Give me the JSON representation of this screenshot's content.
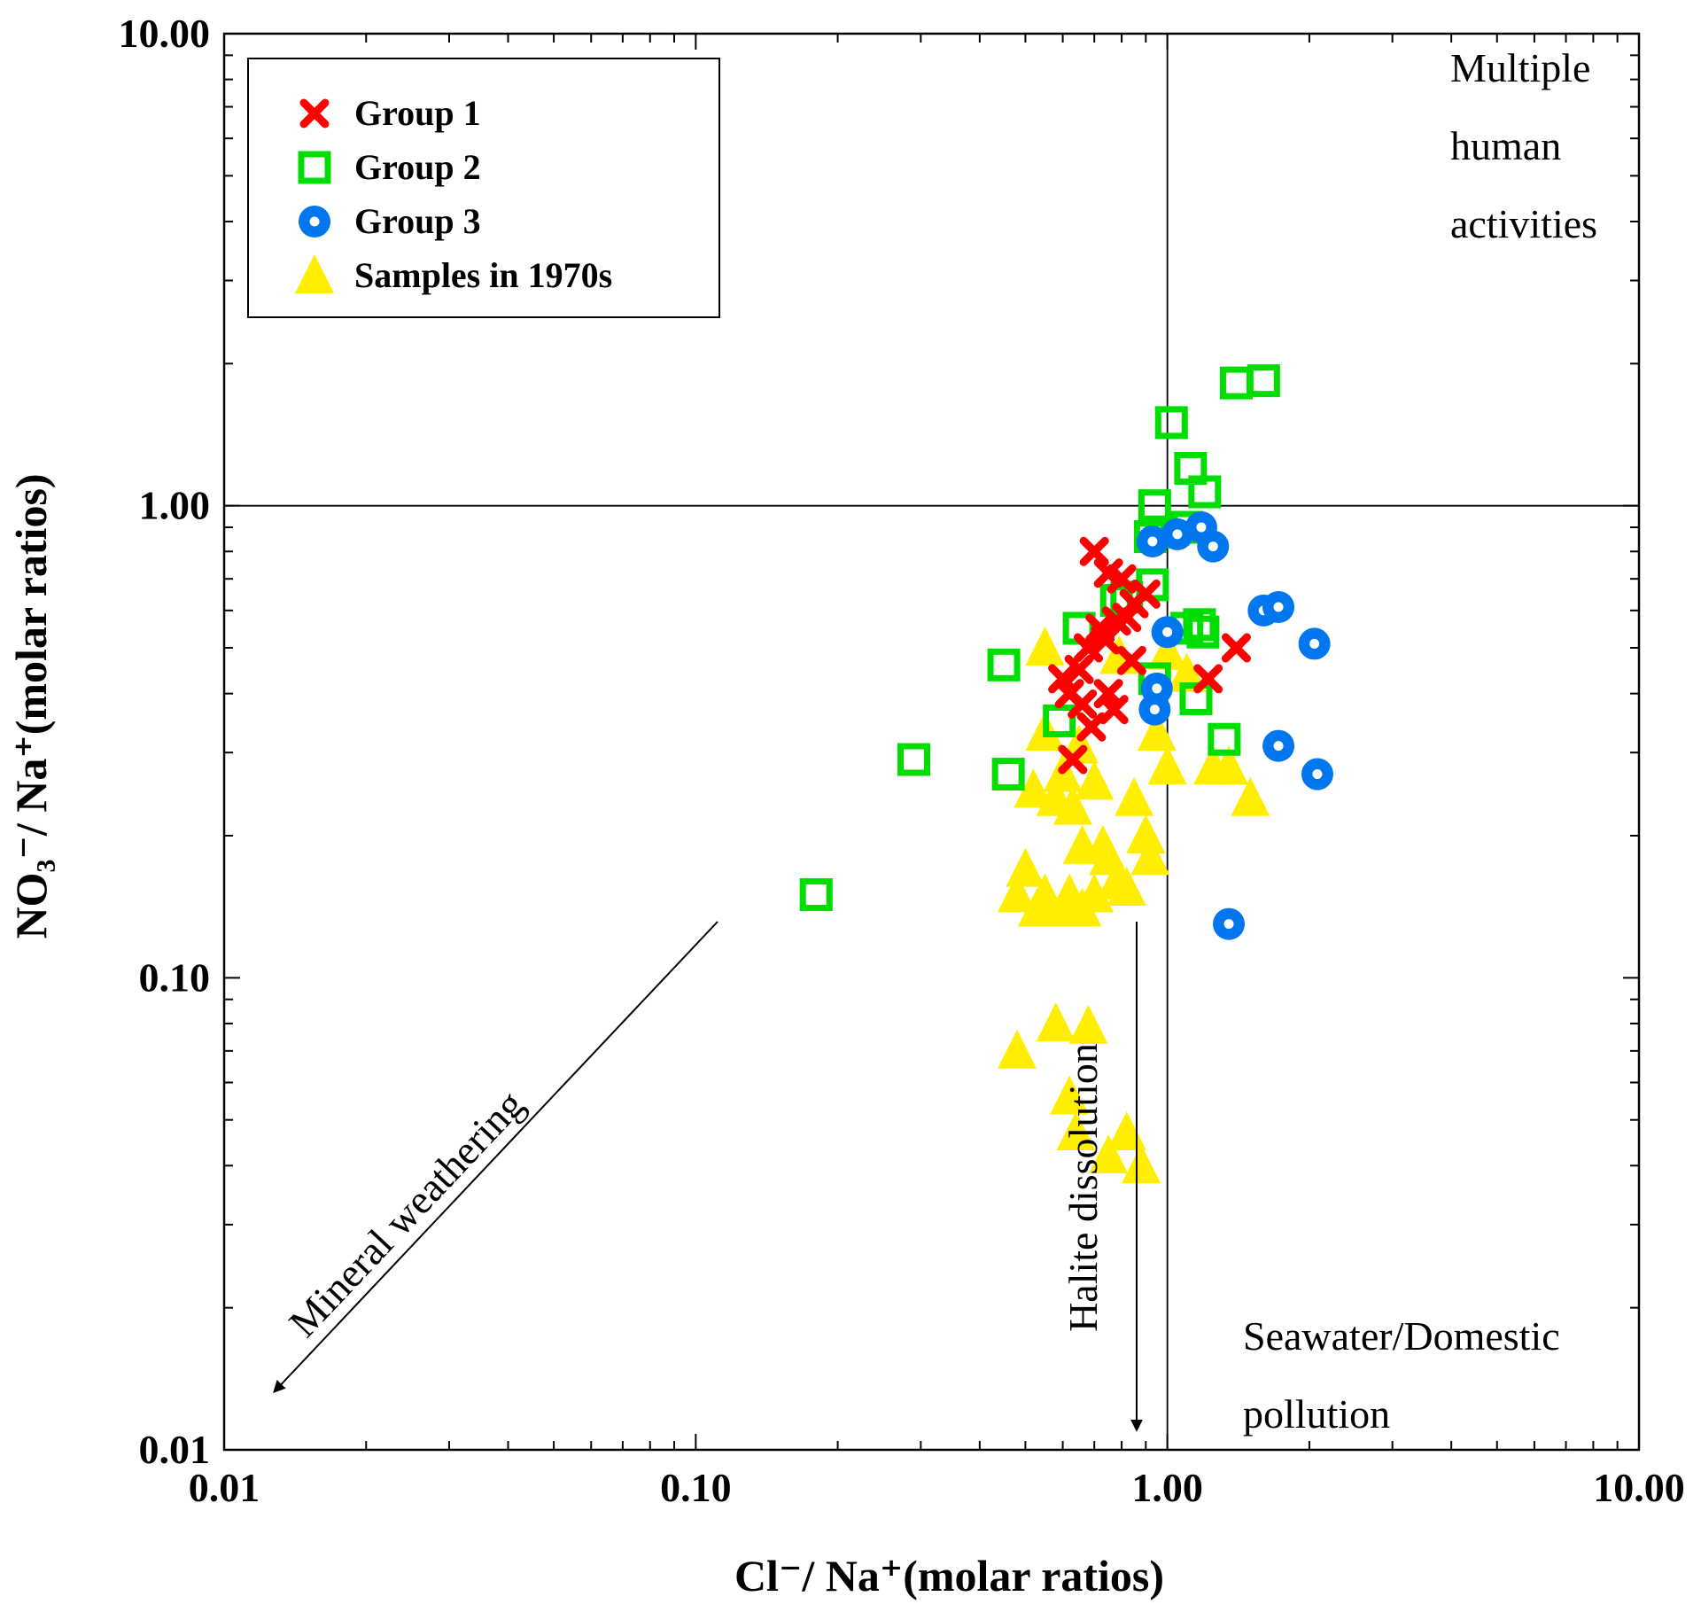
{
  "chart_data": {
    "type": "scatter",
    "x_scale": "log",
    "y_scale": "log",
    "xlim": [
      0.01,
      10
    ],
    "ylim": [
      0.01,
      10
    ],
    "xlabel": "Cl⁻/ Na⁺(molar ratios)",
    "ylabel": "NO₃⁻/ Na⁺(molar ratios)",
    "x_ticks": [
      {
        "value": 0.01,
        "label": "0.01"
      },
      {
        "value": 0.1,
        "label": "0.10"
      },
      {
        "value": 1,
        "label": "1.00"
      },
      {
        "value": 10,
        "label": "10.00"
      }
    ],
    "y_ticks": [
      {
        "value": 0.01,
        "label": "0.01"
      },
      {
        "value": 0.1,
        "label": "0.10"
      },
      {
        "value": 1,
        "label": "1.00"
      },
      {
        "value": 10,
        "label": "10.00"
      }
    ],
    "reference_lines": [
      {
        "axis": "x",
        "value": 1
      },
      {
        "axis": "y",
        "value": 1
      }
    ],
    "legend_position": "top-left",
    "series": [
      {
        "name": "Group 1",
        "marker": "x",
        "color": "#ff0000",
        "points": [
          [
            0.7,
            0.8
          ],
          [
            0.75,
            0.72
          ],
          [
            0.8,
            0.7
          ],
          [
            0.85,
            0.62
          ],
          [
            0.78,
            0.57
          ],
          [
            0.72,
            0.55
          ],
          [
            0.74,
            0.52
          ],
          [
            0.68,
            0.5
          ],
          [
            0.65,
            0.45
          ],
          [
            0.6,
            0.43
          ],
          [
            0.62,
            0.4
          ],
          [
            0.66,
            0.38
          ],
          [
            0.75,
            0.4
          ],
          [
            0.77,
            0.37
          ],
          [
            0.69,
            0.34
          ],
          [
            0.63,
            0.29
          ],
          [
            0.84,
            0.47
          ],
          [
            0.9,
            0.65
          ],
          [
            1.22,
            0.43
          ],
          [
            1.4,
            0.5
          ],
          [
            0.82,
            0.58
          ]
        ]
      },
      {
        "name": "Group 2",
        "marker": "square",
        "color": "#00dd00",
        "points": [
          [
            1.4,
            1.82
          ],
          [
            1.6,
            1.84
          ],
          [
            1.02,
            1.5
          ],
          [
            1.12,
            1.2
          ],
          [
            1.2,
            1.07
          ],
          [
            0.94,
            1.0
          ],
          [
            0.92,
            0.86
          ],
          [
            0.97,
            0.88
          ],
          [
            1.1,
            0.9
          ],
          [
            0.93,
            0.68
          ],
          [
            0.78,
            0.63
          ],
          [
            0.82,
            0.64
          ],
          [
            0.65,
            0.55
          ],
          [
            1.1,
            0.55
          ],
          [
            1.17,
            0.56
          ],
          [
            1.19,
            0.54
          ],
          [
            0.94,
            0.43
          ],
          [
            1.15,
            0.39
          ],
          [
            0.45,
            0.46
          ],
          [
            0.59,
            0.35
          ],
          [
            1.32,
            0.32
          ],
          [
            0.29,
            0.29
          ],
          [
            0.46,
            0.27
          ],
          [
            0.18,
            0.15
          ]
        ]
      },
      {
        "name": "Group 3",
        "marker": "circle",
        "color": "#0077ee",
        "points": [
          [
            1.18,
            0.9
          ],
          [
            1.05,
            0.87
          ],
          [
            0.93,
            0.84
          ],
          [
            1.25,
            0.82
          ],
          [
            1.6,
            0.6
          ],
          [
            1.72,
            0.61
          ],
          [
            1.0,
            0.54
          ],
          [
            2.05,
            0.51
          ],
          [
            0.95,
            0.41
          ],
          [
            0.94,
            0.37
          ],
          [
            1.72,
            0.31
          ],
          [
            2.08,
            0.27
          ],
          [
            1.35,
            0.13
          ]
        ]
      },
      {
        "name": "Samples in 1970s",
        "marker": "triangle",
        "color": "#ffee00",
        "points": [
          [
            0.55,
            0.5
          ],
          [
            0.79,
            0.48
          ],
          [
            1.0,
            0.49
          ],
          [
            1.1,
            0.44
          ],
          [
            0.55,
            0.33
          ],
          [
            0.65,
            0.31
          ],
          [
            0.95,
            0.33
          ],
          [
            0.6,
            0.27
          ],
          [
            0.7,
            0.26
          ],
          [
            1.0,
            0.28
          ],
          [
            1.25,
            0.28
          ],
          [
            1.35,
            0.28
          ],
          [
            0.52,
            0.25
          ],
          [
            0.58,
            0.24
          ],
          [
            0.63,
            0.23
          ],
          [
            0.85,
            0.24
          ],
          [
            1.5,
            0.24
          ],
          [
            0.66,
            0.19
          ],
          [
            0.73,
            0.19
          ],
          [
            0.9,
            0.2
          ],
          [
            0.75,
            0.18
          ],
          [
            0.92,
            0.18
          ],
          [
            0.5,
            0.17
          ],
          [
            0.48,
            0.15
          ],
          [
            0.55,
            0.15
          ],
          [
            0.62,
            0.15
          ],
          [
            0.7,
            0.15
          ],
          [
            0.78,
            0.16
          ],
          [
            0.82,
            0.155
          ],
          [
            0.53,
            0.14
          ],
          [
            0.6,
            0.14
          ],
          [
            0.66,
            0.14
          ],
          [
            0.58,
            0.08
          ],
          [
            0.68,
            0.079
          ],
          [
            0.48,
            0.07
          ],
          [
            0.62,
            0.056
          ],
          [
            0.64,
            0.047
          ],
          [
            0.82,
            0.047
          ],
          [
            0.75,
            0.042
          ],
          [
            0.88,
            0.04
          ]
        ]
      }
    ],
    "annotations": [
      {
        "id": "multiple",
        "lines": [
          "Multiple",
          "human",
          "activities"
        ]
      },
      {
        "id": "seawater",
        "lines": [
          "Seawater/Domestic",
          "pollution"
        ]
      },
      {
        "id": "mineral",
        "text": "Mineral weathering"
      },
      {
        "id": "halite",
        "text": "Halite dissolution"
      }
    ]
  }
}
